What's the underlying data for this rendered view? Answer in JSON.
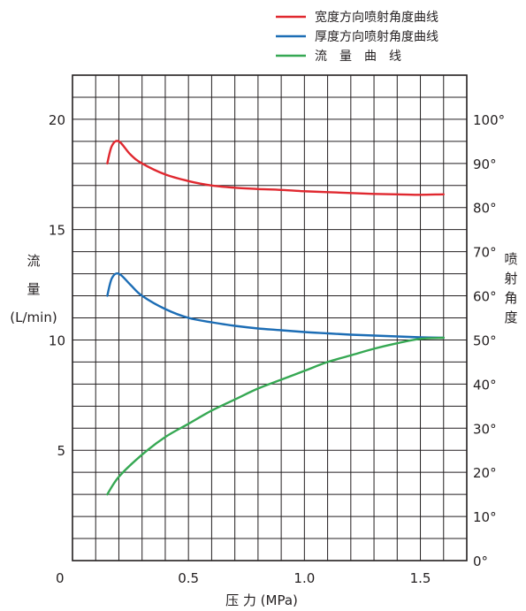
{
  "chart_data": {
    "type": "line",
    "x_axis": {
      "label": "压 力 (MPa)",
      "ticks": [
        {
          "value": 0,
          "label": "0"
        },
        {
          "value": 0.5,
          "label": "0.5"
        },
        {
          "value": 1.0,
          "label": "1.0"
        },
        {
          "value": 1.5,
          "label": "1.5"
        }
      ],
      "range": [
        0,
        1.7
      ]
    },
    "y_left": {
      "label_lines": [
        "流",
        "量",
        "(L/min)"
      ],
      "ticks": [
        {
          "value": 0,
          "label": "0"
        },
        {
          "value": 5,
          "label": "5"
        },
        {
          "value": 10,
          "label": "10"
        },
        {
          "value": 15,
          "label": "15"
        },
        {
          "value": 20,
          "label": "20"
        }
      ],
      "range": [
        0,
        22
      ]
    },
    "y_right": {
      "label_chars": [
        "喷",
        "射",
        "角",
        "度"
      ],
      "ticks": [
        {
          "value": 0,
          "label": "0°"
        },
        {
          "value": 10,
          "label": "10°"
        },
        {
          "value": 20,
          "label": "20°"
        },
        {
          "value": 30,
          "label": "30°"
        },
        {
          "value": 40,
          "label": "40°"
        },
        {
          "value": 50,
          "label": "50°"
        },
        {
          "value": 60,
          "label": "60°"
        },
        {
          "value": 70,
          "label": "70°"
        },
        {
          "value": 80,
          "label": "80°"
        },
        {
          "value": 90,
          "label": "90°"
        },
        {
          "value": 100,
          "label": "100°"
        }
      ],
      "range": [
        0,
        110
      ]
    },
    "grid": true,
    "legend_position": "top-right",
    "series": [
      {
        "name": "宽度方向喷射角度曲线",
        "color": "#e0282f",
        "axis": "right",
        "x": [
          0.15,
          0.17,
          0.2,
          0.25,
          0.3,
          0.4,
          0.5,
          0.6,
          0.7,
          0.8,
          0.9,
          1.0,
          1.1,
          1.2,
          1.3,
          1.4,
          1.5,
          1.6
        ],
        "y": [
          90,
          94,
          95,
          92,
          90,
          87.5,
          86,
          85,
          84.5,
          84.2,
          84,
          83.7,
          83.5,
          83.3,
          83.1,
          83,
          82.9,
          83
        ]
      },
      {
        "name": "厚度方向喷射角度曲线",
        "color": "#1c6db5",
        "axis": "right",
        "x": [
          0.15,
          0.17,
          0.2,
          0.25,
          0.3,
          0.4,
          0.5,
          0.6,
          0.7,
          0.8,
          0.9,
          1.0,
          1.1,
          1.2,
          1.3,
          1.4,
          1.5,
          1.6
        ],
        "y": [
          60,
          64,
          65,
          62.5,
          60,
          57,
          55,
          54,
          53.2,
          52.6,
          52.2,
          51.8,
          51.5,
          51.2,
          51,
          50.8,
          50.6,
          50.5
        ]
      },
      {
        "name": "流　量　曲　线",
        "color": "#36a853",
        "axis": "left",
        "x": [
          0.15,
          0.2,
          0.3,
          0.4,
          0.5,
          0.6,
          0.7,
          0.8,
          0.9,
          1.0,
          1.1,
          1.2,
          1.3,
          1.4,
          1.5,
          1.6
        ],
        "y": [
          3,
          3.8,
          4.8,
          5.6,
          6.2,
          6.8,
          7.3,
          7.8,
          8.2,
          8.6,
          9.0,
          9.3,
          9.6,
          9.85,
          10.05,
          10.1
        ]
      }
    ]
  }
}
